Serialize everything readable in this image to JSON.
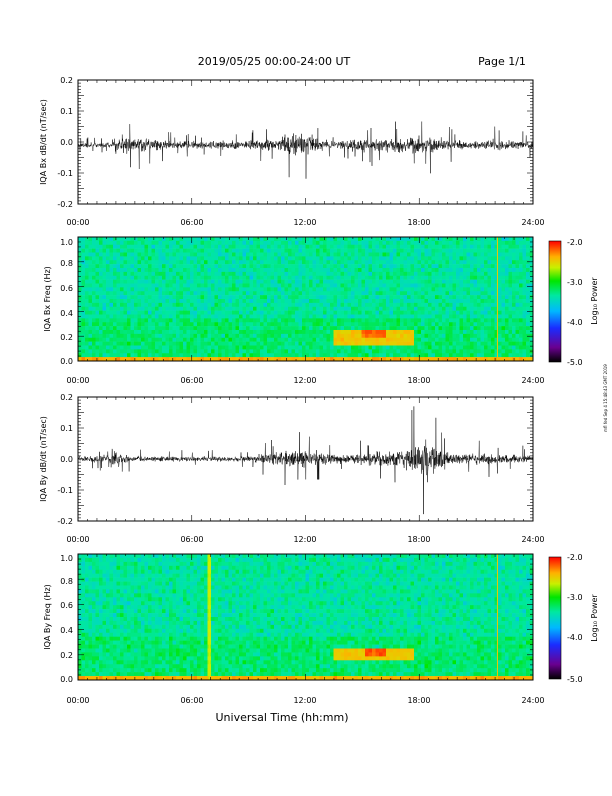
{
  "header": {
    "date_range": "2019/05/25   00:00-24:00 UT",
    "page": "Page 1/1"
  },
  "side_note": "mfl fed Sep 4 15:48:43 GMT 2019",
  "x_axis": {
    "label": "Universal Time (hh:mm)",
    "ticks": [
      "00:00",
      "06:00",
      "12:00",
      "18:00",
      "24:00"
    ]
  },
  "colorbar": {
    "label": "Log₁₀ Power",
    "ticks": [
      "-2.0",
      "-3.0",
      "-4.0",
      "-5.0"
    ],
    "range": [
      -5.0,
      -2.0
    ]
  },
  "chart_data": [
    {
      "type": "line",
      "panel": "bx_dbdt",
      "ylabel": "IQA Bx dB/dt (nT/sec)",
      "ylim": [
        -0.2,
        0.2
      ],
      "yticks": [
        "0.2",
        "0.1",
        "0.0",
        "-0.1",
        "-0.2"
      ],
      "xlim_hours": [
        0,
        24
      ],
      "envelope": {
        "hours": [
          0,
          2.0,
          2.3,
          5.0,
          7.5,
          10.5,
          11.0,
          11.5,
          12.0,
          12.5,
          13.5,
          14.5,
          17.0,
          18.5,
          19.0,
          20.5,
          22.0,
          24.0
        ],
        "amplitude": [
          0.012,
          0.015,
          0.05,
          0.02,
          0.02,
          0.03,
          0.06,
          0.06,
          0.07,
          0.04,
          0.02,
          0.03,
          0.04,
          0.05,
          0.035,
          0.02,
          0.03,
          0.02
        ]
      },
      "baseline": -0.01
    },
    {
      "type": "heatmap",
      "panel": "bx_spectrogram",
      "ylabel": "IQA Bx Freq (Hz)",
      "ylim": [
        0.0,
        1.0
      ],
      "yticks": [
        "1.0",
        "0.8",
        "0.6",
        "0.4",
        "0.2",
        "0.0"
      ],
      "xlim_hours": [
        0,
        24
      ],
      "background_log_power": -3.4,
      "features": [
        {
          "hour_start": 13.5,
          "hour_end": 17.8,
          "freq_low": 0.14,
          "freq_high": 0.26,
          "log_power": -2.5
        },
        {
          "hour_start": 15.0,
          "hour_end": 16.2,
          "freq_low": 0.18,
          "freq_high": 0.26,
          "log_power": -2.2
        },
        {
          "hour_start": 0,
          "hour_end": 24,
          "freq_low": 0.0,
          "freq_high": 0.03,
          "log_power": -2.4
        },
        {
          "hour_start": 22.1,
          "hour_end": 22.15,
          "freq_low": 0.0,
          "freq_high": 1.0,
          "log_power": -2.5
        }
      ]
    },
    {
      "type": "line",
      "panel": "by_dbdt",
      "ylabel": "IQA By dB/dt (nT/sec)",
      "ylim": [
        -0.2,
        0.2
      ],
      "yticks": [
        "0.2",
        "0.1",
        "0.0",
        "-0.1",
        "-0.2"
      ],
      "xlim_hours": [
        0,
        24
      ],
      "envelope": {
        "hours": [
          0,
          1.5,
          1.8,
          2.3,
          3.0,
          6.0,
          9.0,
          11.5,
          12.5,
          13.5,
          15.0,
          17.0,
          17.8,
          18.3,
          18.8,
          19.5,
          20.5,
          22.0,
          24.0
        ],
        "amplitude": [
          0.015,
          0.02,
          0.07,
          0.03,
          0.015,
          0.015,
          0.015,
          0.05,
          0.04,
          0.025,
          0.03,
          0.05,
          0.09,
          0.12,
          0.09,
          0.035,
          0.03,
          0.03,
          0.02
        ]
      },
      "baseline": 0.0
    },
    {
      "type": "heatmap",
      "panel": "by_spectrogram",
      "ylabel": "IQA By Freq (Hz)",
      "ylim": [
        0.0,
        1.0
      ],
      "yticks": [
        "1.0",
        "0.8",
        "0.6",
        "0.4",
        "0.2",
        "0.0"
      ],
      "xlim_hours": [
        0,
        24
      ],
      "background_log_power": -3.4,
      "features": [
        {
          "hour_start": 13.5,
          "hour_end": 17.8,
          "freq_low": 0.16,
          "freq_high": 0.26,
          "log_power": -2.5
        },
        {
          "hour_start": 15.2,
          "hour_end": 16.2,
          "freq_low": 0.18,
          "freq_high": 0.26,
          "log_power": -2.2
        },
        {
          "hour_start": 0,
          "hour_end": 24,
          "freq_low": 0.0,
          "freq_high": 0.03,
          "log_power": -2.4
        },
        {
          "hour_start": 6.9,
          "hour_end": 6.95,
          "freq_low": 0.0,
          "freq_high": 1.0,
          "log_power": -2.7
        },
        {
          "hour_start": 22.1,
          "hour_end": 22.15,
          "freq_low": 0.0,
          "freq_high": 1.0,
          "log_power": -2.5
        }
      ]
    }
  ]
}
